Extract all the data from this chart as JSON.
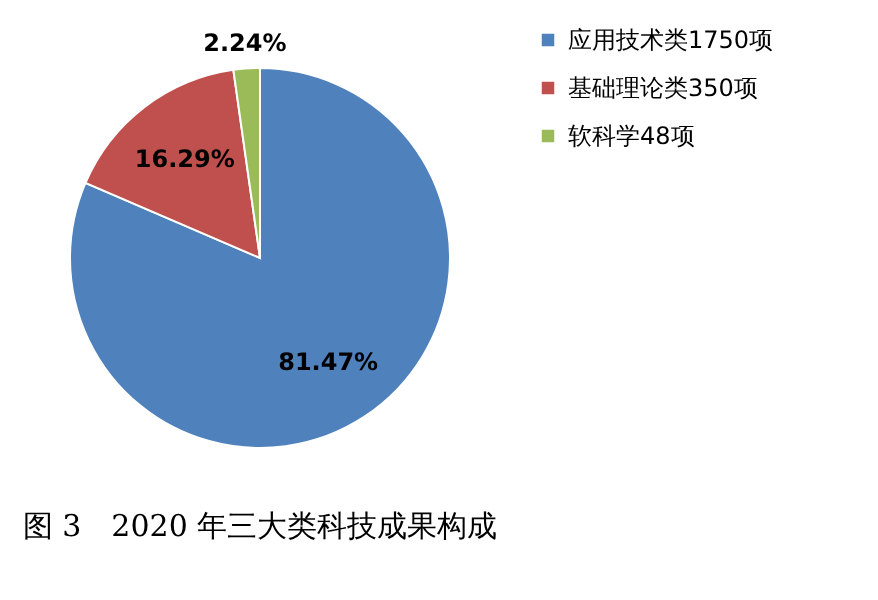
{
  "chart_data": {
    "type": "pie",
    "title": "图 3　2020 年三大类科技成果构成",
    "categories": [
      "应用技术类1750项",
      "基础理论类350项",
      "软科学48项"
    ],
    "values": [
      81.47,
      16.29,
      2.24
    ],
    "colors": [
      "#4f81bd",
      "#c0504d",
      "#9bbb59"
    ],
    "value_labels": [
      "81.47%",
      "16.29%",
      "2.24%"
    ],
    "legend": "right"
  }
}
